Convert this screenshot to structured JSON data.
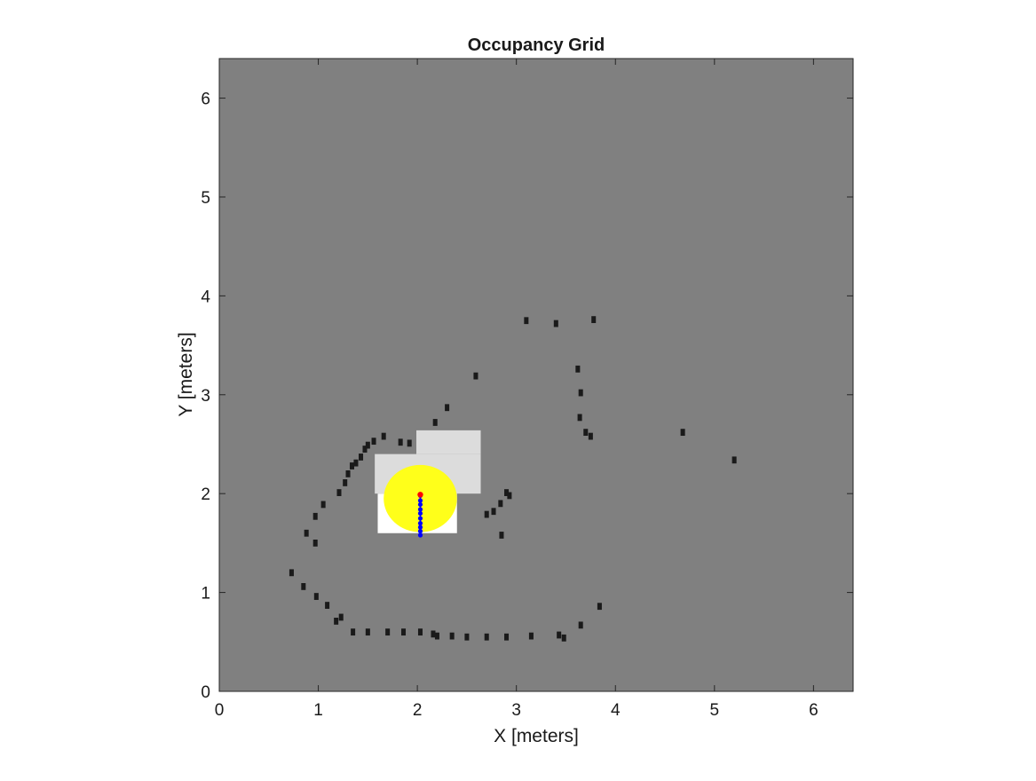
{
  "chart_data": {
    "type": "heatmap",
    "title": "Occupancy Grid",
    "xlabel": "X [meters]",
    "ylabel": "Y [meters]",
    "xlim": [
      0,
      6.4
    ],
    "ylim": [
      0,
      6.4
    ],
    "xticks": [
      0,
      1,
      2,
      3,
      4,
      5,
      6
    ],
    "yticks": [
      0,
      1,
      2,
      3,
      4,
      5,
      6
    ],
    "grid": false,
    "colors": {
      "unknown": "#808080",
      "occupied": "#1a1a1a",
      "free": "#ffffff",
      "partially_free": "#dcdcdc",
      "inflated_region": "#ffff1a",
      "path": "#0000ff",
      "robot": "#ff0000"
    },
    "free_regions": [
      {
        "x": [
          1.6,
          2.4
        ],
        "y": [
          1.6,
          2.0
        ],
        "value": "free"
      },
      {
        "x": [
          1.57,
          2.64
        ],
        "y": [
          2.0,
          2.4
        ],
        "value": "partially_free"
      },
      {
        "x": [
          1.99,
          2.64
        ],
        "y": [
          2.4,
          2.64
        ],
        "value": "partially_free"
      }
    ],
    "occupied_cells": [
      [
        0.73,
        1.2
      ],
      [
        0.85,
        1.06
      ],
      [
        0.88,
        1.6
      ],
      [
        0.98,
        0.96
      ],
      [
        0.97,
        1.5
      ],
      [
        0.97,
        1.77
      ],
      [
        1.05,
        1.89
      ],
      [
        1.09,
        0.87
      ],
      [
        1.18,
        0.71
      ],
      [
        1.21,
        2.01
      ],
      [
        1.23,
        0.75
      ],
      [
        1.27,
        2.11
      ],
      [
        1.3,
        2.2
      ],
      [
        1.34,
        2.28
      ],
      [
        1.38,
        2.31
      ],
      [
        1.43,
        2.37
      ],
      [
        1.47,
        2.45
      ],
      [
        1.5,
        2.49
      ],
      [
        1.56,
        2.53
      ],
      [
        1.66,
        2.58
      ],
      [
        1.35,
        0.6
      ],
      [
        1.5,
        0.6
      ],
      [
        1.7,
        0.6
      ],
      [
        1.86,
        0.6
      ],
      [
        2.03,
        0.6
      ],
      [
        2.16,
        0.58
      ],
      [
        2.2,
        0.56
      ],
      [
        2.35,
        0.56
      ],
      [
        2.5,
        0.55
      ],
      [
        2.7,
        0.55
      ],
      [
        2.9,
        0.55
      ],
      [
        3.15,
        0.56
      ],
      [
        3.43,
        0.57
      ],
      [
        3.48,
        0.54
      ],
      [
        3.65,
        0.67
      ],
      [
        3.84,
        0.86
      ],
      [
        1.83,
        2.52
      ],
      [
        1.92,
        2.51
      ],
      [
        2.18,
        2.72
      ],
      [
        2.3,
        2.87
      ],
      [
        2.59,
        3.19
      ],
      [
        2.7,
        1.79
      ],
      [
        2.77,
        1.82
      ],
      [
        2.84,
        1.9
      ],
      [
        2.85,
        1.58
      ],
      [
        2.9,
        2.01
      ],
      [
        2.93,
        1.98
      ],
      [
        3.1,
        3.75
      ],
      [
        3.4,
        3.72
      ],
      [
        3.78,
        3.76
      ],
      [
        3.62,
        3.26
      ],
      [
        3.65,
        3.02
      ],
      [
        3.64,
        2.77
      ],
      [
        3.7,
        2.62
      ],
      [
        3.75,
        2.58
      ],
      [
        4.68,
        2.62
      ],
      [
        5.2,
        2.34
      ]
    ],
    "inflated_region": {
      "center": [
        2.03,
        1.95
      ],
      "radius_x": 0.37,
      "radius_y": 0.34
    },
    "path": {
      "x": [
        2.03,
        2.03,
        2.03,
        2.03,
        2.03,
        2.03,
        2.03,
        2.03,
        2.03,
        2.03
      ],
      "y": [
        1.98,
        1.93,
        1.89,
        1.84,
        1.8,
        1.75,
        1.7,
        1.66,
        1.62,
        1.58
      ]
    },
    "robot": {
      "x": 2.03,
      "y": 1.99
    }
  }
}
